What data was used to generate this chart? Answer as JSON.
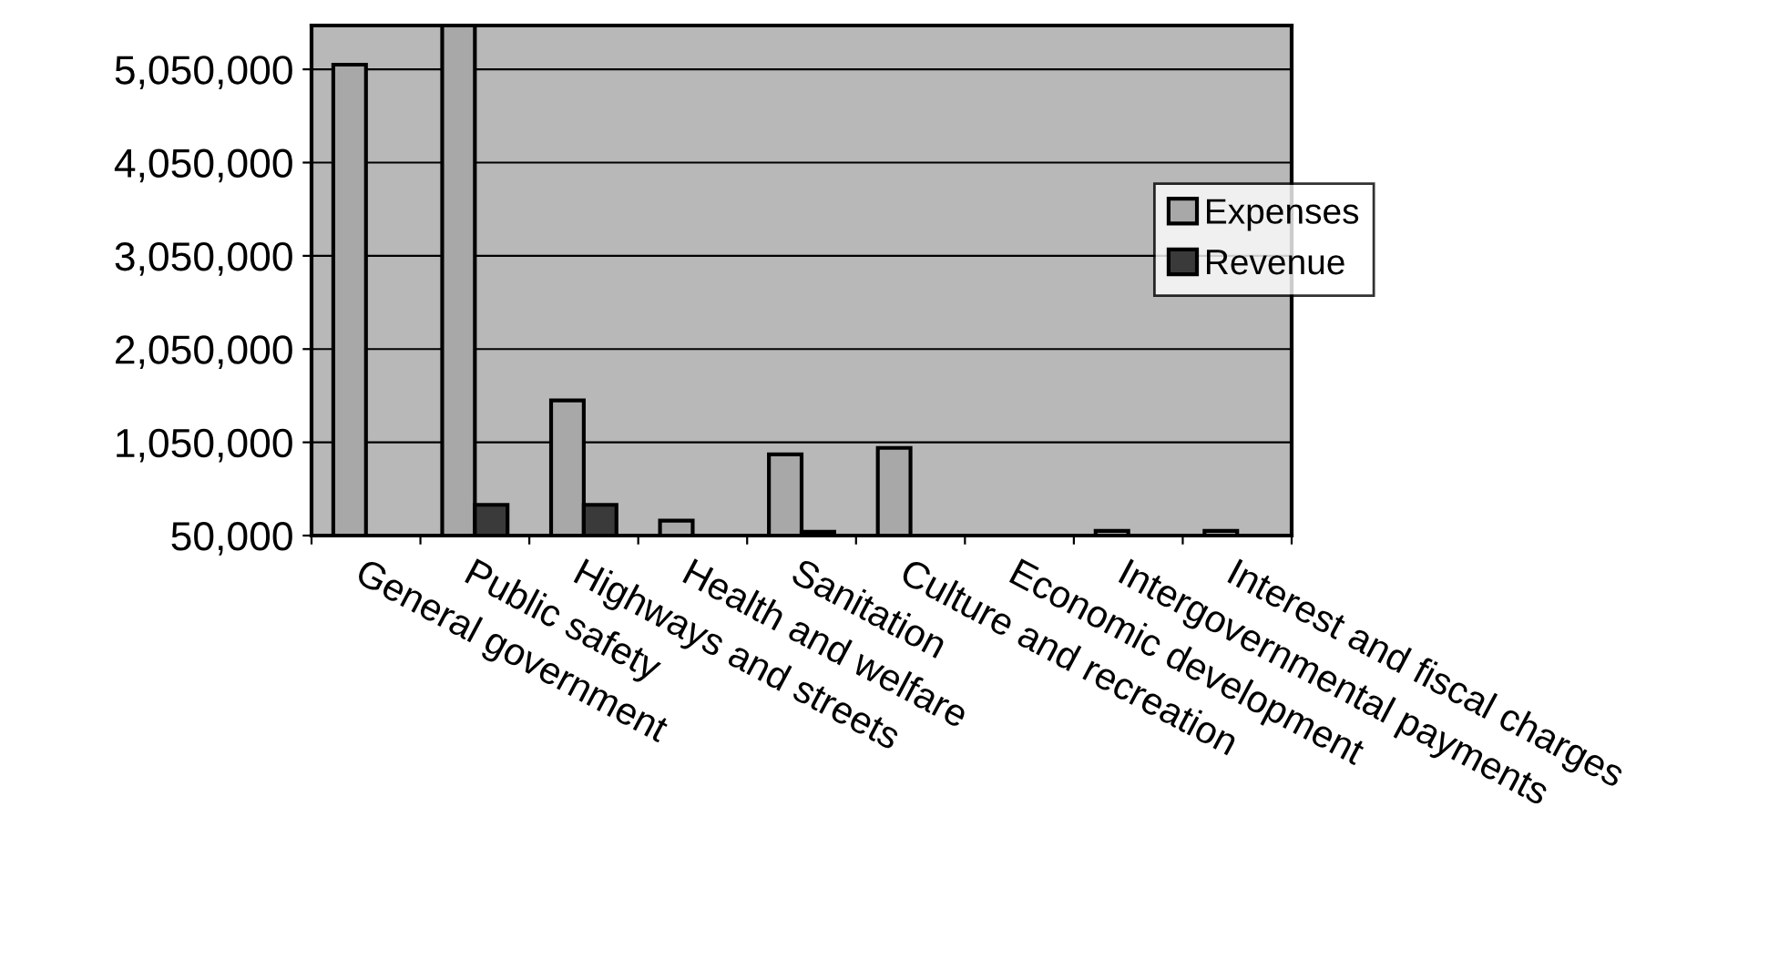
{
  "chart_data": {
    "type": "bar",
    "categories": [
      "General government",
      "Public safety",
      "Highways and streets",
      "Health and welfare",
      "Sanitation",
      "Culture and recreation",
      "Economic development",
      "Intergovernmental payments",
      "Interest and fiscal charges"
    ],
    "series": [
      {
        "name": "Expenses",
        "color": "#a8a8a8",
        "values": [
          5100000,
          5520000,
          1500000,
          210000,
          920000,
          990000,
          null,
          100000,
          100000
        ]
      },
      {
        "name": "Revenue",
        "color": "#3a3a3a",
        "values": [
          null,
          380000,
          380000,
          null,
          90000,
          null,
          null,
          null,
          null
        ]
      }
    ],
    "ylim": [
      50000,
      5520000
    ],
    "yticks": [
      {
        "value": 50000,
        "label": "50,000"
      },
      {
        "value": 1050000,
        "label": "1,050,000"
      },
      {
        "value": 2050000,
        "label": "2,050,000"
      },
      {
        "value": 3050000,
        "label": "3,050,000"
      },
      {
        "value": 4050000,
        "label": "4,050,000"
      },
      {
        "value": 5050000,
        "label": "5,050,000"
      }
    ],
    "grid": "y",
    "legend": "right"
  }
}
